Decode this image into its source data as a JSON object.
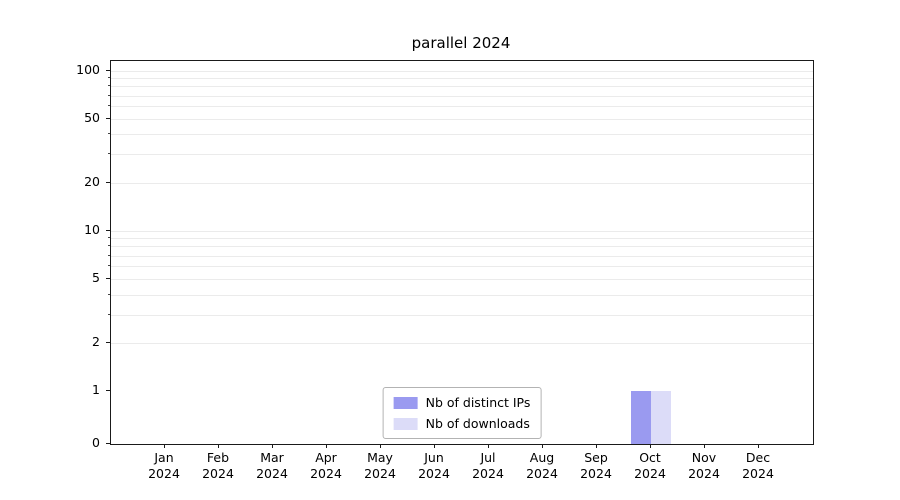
{
  "chart_data": {
    "type": "bar",
    "title": "parallel 2024",
    "categories": [
      "Jan",
      "Feb",
      "Mar",
      "Apr",
      "May",
      "Jun",
      "Jul",
      "Aug",
      "Sep",
      "Oct",
      "Nov",
      "Dec"
    ],
    "category_year": "2024",
    "series": [
      {
        "name": "Nb of distinct IPs",
        "color": "#9a9af0",
        "values": [
          0,
          0,
          0,
          0,
          0,
          0,
          0,
          0,
          0,
          1,
          0,
          0
        ]
      },
      {
        "name": "Nb of downloads",
        "color": "#dcdcf8",
        "values": [
          0,
          0,
          0,
          0,
          0,
          0,
          0,
          0,
          0,
          1,
          0,
          0
        ]
      }
    ],
    "yscale": "symlog",
    "ylim": [
      0,
      115
    ],
    "yticks": [
      0,
      1,
      2,
      5,
      10,
      20,
      50,
      100
    ],
    "minor_grid_values": [
      2,
      3,
      4,
      5,
      6,
      7,
      8,
      9,
      10,
      20,
      30,
      40,
      50,
      60,
      70,
      80,
      90,
      100
    ],
    "grid": true,
    "legend_position": "lower center"
  }
}
